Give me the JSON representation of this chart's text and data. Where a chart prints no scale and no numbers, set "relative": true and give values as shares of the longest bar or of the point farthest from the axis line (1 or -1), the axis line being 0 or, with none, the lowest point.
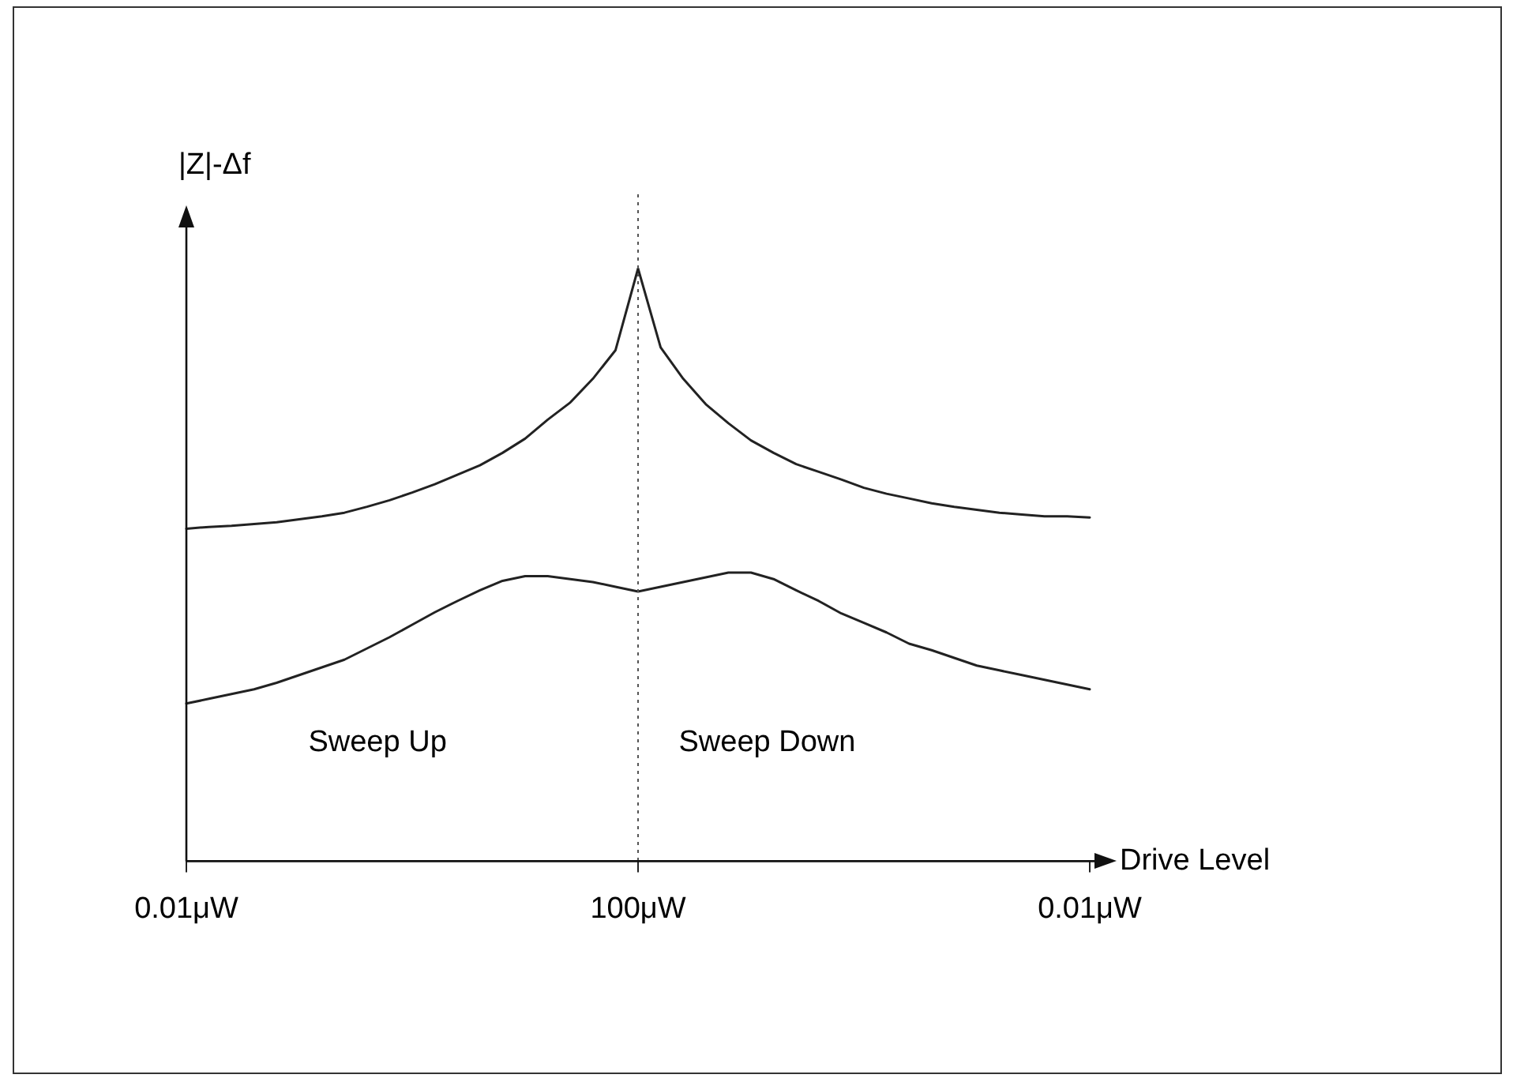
{
  "chart_data": {
    "type": "line",
    "relative": true,
    "xlabel": "Drive Level",
    "ylabel": "|Z|-Δf",
    "categories": [
      "0.01μW",
      null,
      null,
      null,
      null,
      null,
      null,
      null,
      null,
      null,
      null,
      null,
      null,
      null,
      null,
      null,
      null,
      null,
      null,
      null,
      "100μW",
      null,
      null,
      null,
      null,
      null,
      null,
      null,
      null,
      null,
      null,
      null,
      null,
      null,
      null,
      null,
      null,
      null,
      null,
      null,
      "0.01μW"
    ],
    "series": [
      {
        "color": "#222222",
        "values": [
          0.561,
          0.564,
          0.566,
          0.569,
          0.572,
          0.577,
          0.582,
          0.588,
          0.598,
          0.609,
          0.622,
          0.636,
          0.652,
          0.668,
          0.689,
          0.713,
          0.745,
          0.774,
          0.814,
          0.862,
          1,
          0.867,
          0.814,
          0.771,
          0.739,
          0.71,
          0.689,
          0.67,
          0.657,
          0.644,
          0.63,
          0.62,
          0.612,
          0.604,
          0.598,
          0.593,
          0.588,
          0.585,
          0.582,
          0.582,
          0.58
        ]
      },
      {
        "color": "#222222",
        "values": [
          0.266,
          0.274,
          0.282,
          0.29,
          0.301,
          0.314,
          0.327,
          0.34,
          0.359,
          0.378,
          0.399,
          0.42,
          0.439,
          0.457,
          0.473,
          0.481,
          0.481,
          0.476,
          0.471,
          0.463,
          0.455,
          0.463,
          0.471,
          0.479,
          0.487,
          0.487,
          0.476,
          0.457,
          0.439,
          0.418,
          0.402,
          0.386,
          0.367,
          0.356,
          0.343,
          0.33,
          0.322,
          0.314,
          0.306,
          0.298,
          0.29
        ]
      }
    ],
    "ref_lines": [
      {
        "axis": "x",
        "value": "100μW",
        "color": "#555555",
        "line_style": "dotted"
      }
    ],
    "annotations": [
      "Sweep Up",
      "Sweep Down"
    ]
  }
}
